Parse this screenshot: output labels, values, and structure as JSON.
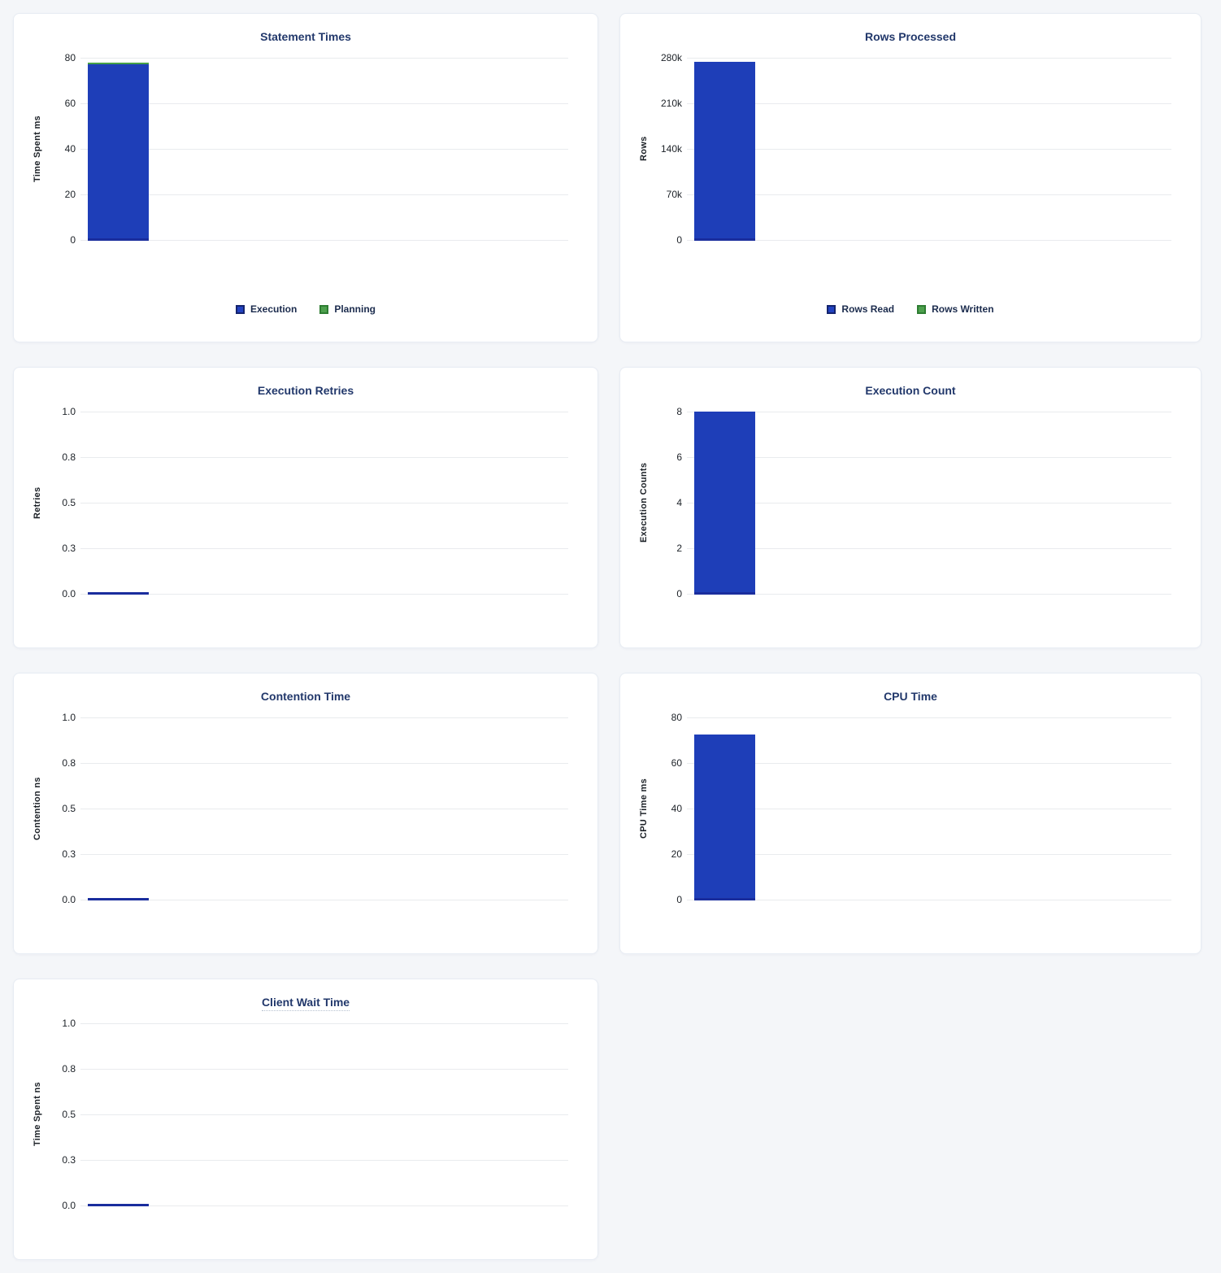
{
  "colors": {
    "background": "#f4f6f9",
    "card_border": "#e7ecf3",
    "title": "#22386b",
    "tick_text": "#1c2127",
    "gridline": "#e9ebee",
    "bar_blue": "#1e3eb8",
    "bar_green": "#47a147",
    "zero_baseline": "#1a2d9d"
  },
  "chart_data": [
    {
      "type": "bar",
      "title": "Statement Times",
      "ylabel": "Time Spent ms",
      "ylim": [
        0,
        80
      ],
      "yticks": [
        "80",
        "60",
        "40",
        "20",
        "0"
      ],
      "grid": true,
      "legend": true,
      "legend_position": "bottom",
      "series": [
        {
          "name": "Execution",
          "value": 77,
          "color": "#1e3eb8",
          "swatch": "blue"
        },
        {
          "name": "Planning",
          "value": 1,
          "color": "#47a147",
          "swatch": "green"
        }
      ]
    },
    {
      "type": "bar",
      "title": "Rows Processed",
      "ylabel": "Rows",
      "ylim": [
        0,
        280000
      ],
      "yticks": [
        "280k",
        "210k",
        "140k",
        "70k",
        "0"
      ],
      "grid": true,
      "legend": true,
      "legend_position": "bottom",
      "series": [
        {
          "name": "Rows Read",
          "value": 274000,
          "color": "#1e3eb8",
          "swatch": "blue"
        },
        {
          "name": "Rows Written",
          "value": 0,
          "color": "#47a147",
          "swatch": "green"
        }
      ]
    },
    {
      "type": "bar",
      "title": "Execution Retries",
      "ylabel": "Retries",
      "ylim": [
        0,
        1
      ],
      "yticks": [
        "1.0",
        "0.8",
        "0.5",
        "0.3",
        "0.0"
      ],
      "grid": true,
      "legend": false,
      "series": [
        {
          "value": 0,
          "color": "#1e3eb8",
          "swatch": "blue"
        }
      ]
    },
    {
      "type": "bar",
      "title": "Execution Count",
      "ylabel": "Execution Counts",
      "ylim": [
        0,
        8
      ],
      "yticks": [
        "8",
        "6",
        "4",
        "2",
        "0"
      ],
      "grid": true,
      "legend": false,
      "series": [
        {
          "value": 8,
          "color": "#1e3eb8",
          "swatch": "blue"
        }
      ]
    },
    {
      "type": "bar",
      "title": "Contention Time",
      "ylabel": "Contention ns",
      "ylim": [
        0,
        1
      ],
      "yticks": [
        "1.0",
        "0.8",
        "0.5",
        "0.3",
        "0.0"
      ],
      "grid": true,
      "legend": false,
      "series": [
        {
          "value": 0,
          "color": "#1e3eb8",
          "swatch": "blue"
        }
      ]
    },
    {
      "type": "bar",
      "title": "CPU Time",
      "ylabel": "CPU Time ms",
      "ylim": [
        0,
        80
      ],
      "yticks": [
        "80",
        "60",
        "40",
        "20",
        "0"
      ],
      "grid": true,
      "legend": false,
      "series": [
        {
          "value": 72.5,
          "color": "#1e3eb8",
          "swatch": "blue"
        }
      ]
    },
    {
      "type": "bar",
      "title": "Client Wait Time",
      "title_tooltip": true,
      "ylabel": "Time Spent ns",
      "ylim": [
        0,
        1
      ],
      "yticks": [
        "1.0",
        "0.8",
        "0.5",
        "0.3",
        "0.0"
      ],
      "grid": true,
      "legend": false,
      "series": [
        {
          "value": 0,
          "color": "#1e3eb8",
          "swatch": "blue"
        }
      ]
    }
  ]
}
